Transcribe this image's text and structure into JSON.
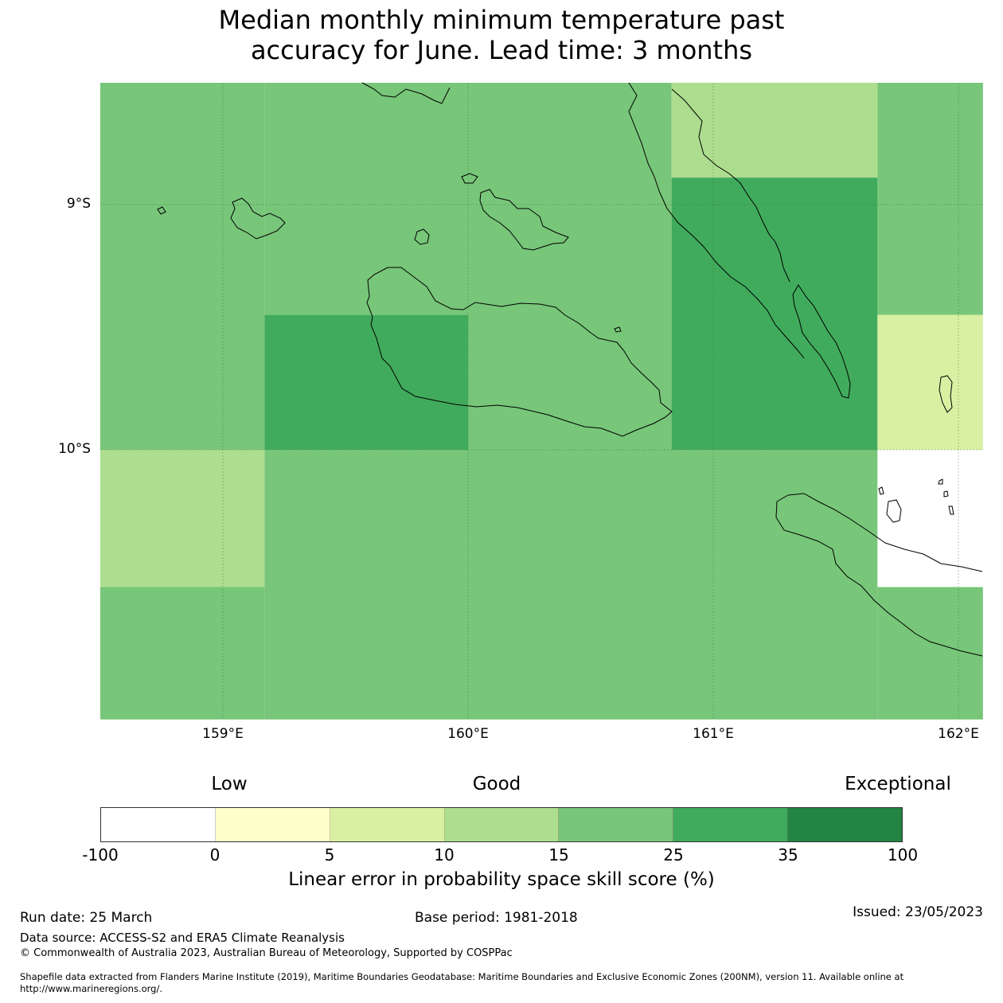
{
  "title": {
    "line1": "Median monthly minimum temperature past",
    "line2": "accuracy for June. Lead time: 3 months"
  },
  "map": {
    "region": "Solomon Islands (Guadalcanal, Malaita)",
    "lat_labels": [
      "9°S",
      "10°S"
    ],
    "lon_labels": [
      "159°E",
      "160°E",
      "161°E",
      "162°E"
    ],
    "extent": {
      "lon_min": 158.5,
      "lon_max": 162.1,
      "lat_max": -8.5,
      "lat_min": -11.1
    },
    "grid_cells_skill_class": [
      {
        "lon": [
          158.5,
          159.17
        ],
        "lat": [
          -8.5,
          -10.0
        ],
        "class": "15-25"
      },
      {
        "lon": [
          159.17,
          160.0
        ],
        "lat": [
          -8.5,
          -9.45
        ],
        "class": "15-25"
      },
      {
        "lon": [
          159.17,
          160.0
        ],
        "lat": [
          -9.45,
          -10.0
        ],
        "class": "25-35"
      },
      {
        "lon": [
          160.0,
          160.83
        ],
        "lat": [
          -8.5,
          -10.0
        ],
        "class": "15-25"
      },
      {
        "lon": [
          160.83,
          161.67
        ],
        "lat": [
          -8.5,
          -8.89
        ],
        "class": "10-15"
      },
      {
        "lon": [
          160.83,
          161.67
        ],
        "lat": [
          -8.89,
          -10.0
        ],
        "class": "25-35"
      },
      {
        "lon": [
          161.67,
          162.1
        ],
        "lat": [
          -8.5,
          -9.45
        ],
        "class": "15-25"
      },
      {
        "lon": [
          161.67,
          162.1
        ],
        "lat": [
          -9.45,
          -10.0
        ],
        "class": "5-10"
      },
      {
        "lon": [
          158.5,
          159.17
        ],
        "lat": [
          -10.0,
          -10.56
        ],
        "class": "10-15"
      },
      {
        "lon": [
          159.17,
          161.67
        ],
        "lat": [
          -10.0,
          -11.1
        ],
        "class": "15-25"
      },
      {
        "lon": [
          161.67,
          162.1
        ],
        "lat": [
          -10.0,
          -10.56
        ],
        "class": "no data"
      },
      {
        "lon": [
          158.5,
          159.17
        ],
        "lat": [
          -10.56,
          -11.1
        ],
        "class": "15-25"
      },
      {
        "lon": [
          161.67,
          162.1
        ],
        "lat": [
          -10.56,
          -11.1
        ],
        "class": "15-25"
      }
    ]
  },
  "legend": {
    "category_labels": [
      "Low",
      "Good",
      "Exceptional"
    ],
    "ticks": [
      "-100",
      "0",
      "5",
      "10",
      "15",
      "25",
      "35",
      "100"
    ],
    "colors": [
      "#ffffff",
      "#ffffcc",
      "#d9f0a3",
      "#addd8e",
      "#78c679",
      "#41ab5d",
      "#238443"
    ],
    "title": "Linear error in probability space skill score (%)"
  },
  "footer": {
    "run_date": "Run date: 25 March",
    "base_period": "Base period: 1981-2018",
    "issued": "Issued: 23/05/2023",
    "data_source": "Data source: ACCESS-S2 and ERA5 Climate Reanalysis",
    "copyright": "© Commonwealth of Australia 2023, Australian Bureau of Meteorology, Supported by COSPPac",
    "shapefile": "Shapefile data extracted from Flanders Marine Institute (2019), Maritime Boundaries Geodatabase: Maritime Boundaries and Exclusive Economic Zones (200NM), version 11. Available online at http://www.marineregions.org/."
  }
}
